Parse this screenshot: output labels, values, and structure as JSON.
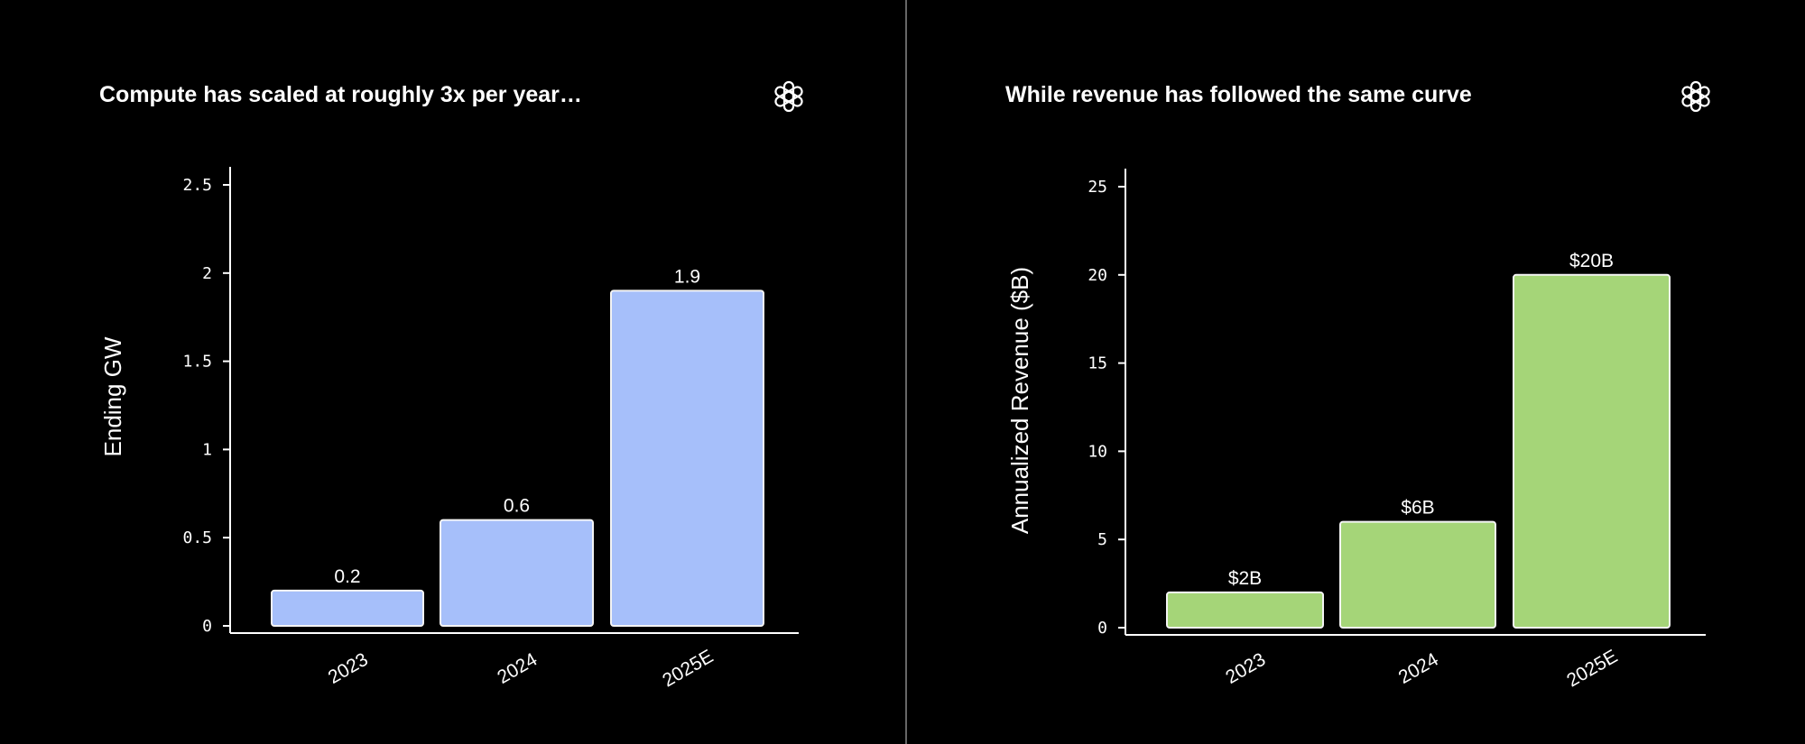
{
  "chart_data": [
    {
      "type": "bar",
      "title": "Compute has scaled at roughly 3x per year…",
      "xlabel": "",
      "ylabel": "Ending GW",
      "categories": [
        "2023",
        "2024",
        "2025E"
      ],
      "values": [
        0.2,
        0.6,
        1.9
      ],
      "data_labels": [
        "0.2",
        "0.6",
        "1.9"
      ],
      "yticks": [
        "0",
        "0.5",
        "1",
        "1.5",
        "2",
        "2.5"
      ],
      "ytick_values": [
        0,
        0.5,
        1,
        1.5,
        2,
        2.5
      ],
      "ylim": [
        0,
        2.6
      ],
      "grid": false,
      "bar_color": "#a6bffa",
      "logo": "openai-logo-icon"
    },
    {
      "type": "bar",
      "title": "While revenue has followed the same curve",
      "xlabel": "",
      "ylabel": "Annualized Revenue ($B)",
      "categories": [
        "2023",
        "2024",
        "2025E"
      ],
      "values": [
        2,
        6,
        20
      ],
      "data_labels": [
        "$2B",
        "$6B",
        "$20B"
      ],
      "yticks": [
        "0",
        "5",
        "10",
        "15",
        "20",
        "25"
      ],
      "ytick_values": [
        0,
        5,
        10,
        15,
        20,
        25
      ],
      "ylim": [
        0,
        26
      ],
      "grid": false,
      "bar_color": "#a5d578",
      "logo": "openai-logo-icon"
    }
  ]
}
